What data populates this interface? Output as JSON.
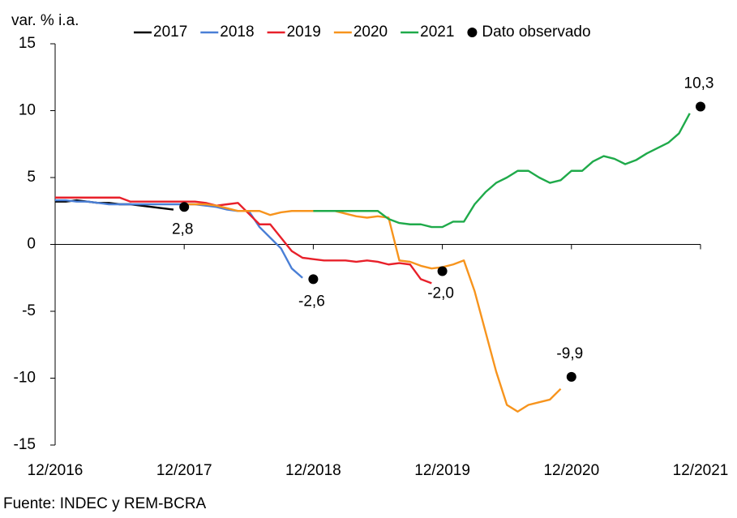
{
  "chart_data": {
    "type": "line",
    "y_label": "var. % i.a.",
    "source": "Fuente: INDEC y REM-BCRA",
    "x": [
      "12/2016",
      null,
      null,
      null,
      null,
      null,
      null,
      null,
      null,
      null,
      null,
      null,
      "12/2017",
      null,
      null,
      null,
      null,
      null,
      null,
      null,
      null,
      null,
      null,
      null,
      "12/2018",
      null,
      null,
      null,
      null,
      null,
      null,
      null,
      null,
      null,
      null,
      null,
      "12/2019",
      null,
      null,
      null,
      null,
      null,
      null,
      null,
      null,
      null,
      null,
      null,
      "12/2020",
      null,
      null,
      null,
      null,
      null,
      null,
      null,
      null,
      null,
      null,
      null,
      "12/2021"
    ],
    "ylim": [
      -15,
      15
    ],
    "yticks": [
      -15,
      -10,
      -5,
      0,
      5,
      10,
      15
    ],
    "series": [
      {
        "name": "2017",
        "color": "#000000",
        "values": [
          3.2,
          3.2,
          3.3,
          3.2,
          3.1,
          3.1,
          3.0,
          3.0,
          2.9,
          2.8,
          2.7,
          2.6,
          null,
          null,
          null,
          null,
          null,
          null,
          null,
          null,
          null,
          null,
          null,
          null,
          null,
          null,
          null,
          null,
          null,
          null,
          null,
          null,
          null,
          null,
          null,
          null,
          null,
          null,
          null,
          null,
          null,
          null,
          null,
          null,
          null,
          null,
          null,
          null,
          null,
          null,
          null,
          null,
          null,
          null,
          null,
          null,
          null,
          null,
          null,
          null,
          null
        ]
      },
      {
        "name": "2018",
        "color": "#4a7fd6",
        "values": [
          3.3,
          3.3,
          3.2,
          3.2,
          3.1,
          3.0,
          3.0,
          3.0,
          3.0,
          3.0,
          3.0,
          3.0,
          3.0,
          3.0,
          2.9,
          2.8,
          2.6,
          2.5,
          2.5,
          1.3,
          0.5,
          -0.3,
          -1.8,
          -2.5,
          null,
          null,
          null,
          null,
          null,
          null,
          null,
          null,
          null,
          null,
          null,
          null,
          null,
          null,
          null,
          null,
          null,
          null,
          null,
          null,
          null,
          null,
          null,
          null,
          null,
          null,
          null,
          null,
          null,
          null,
          null,
          null,
          null,
          null,
          null,
          null,
          null
        ]
      },
      {
        "name": "2019",
        "color": "#e8202a",
        "values": [
          3.5,
          3.5,
          3.5,
          3.5,
          3.5,
          3.5,
          3.5,
          3.2,
          3.2,
          3.2,
          3.2,
          3.2,
          3.2,
          3.2,
          3.1,
          2.9,
          3.0,
          3.1,
          2.3,
          1.5,
          1.5,
          0.5,
          -0.5,
          -1.0,
          -1.1,
          -1.2,
          -1.2,
          -1.2,
          -1.3,
          -1.2,
          -1.3,
          -1.5,
          -1.4,
          -1.5,
          -2.6,
          -2.9,
          null,
          null,
          null,
          null,
          null,
          null,
          null,
          null,
          null,
          null,
          null,
          null,
          null,
          null,
          null,
          null,
          null,
          null,
          null,
          null,
          null,
          null,
          null,
          null,
          null
        ]
      },
      {
        "name": "2020",
        "color": "#f7941d",
        "values": [
          null,
          null,
          null,
          null,
          null,
          null,
          null,
          null,
          null,
          null,
          null,
          null,
          3.0,
          3.0,
          3.0,
          2.9,
          2.7,
          2.5,
          2.5,
          2.5,
          2.2,
          2.4,
          2.5,
          2.5,
          2.5,
          2.5,
          2.5,
          2.3,
          2.1,
          2.0,
          2.1,
          2.0,
          -1.2,
          -1.3,
          -1.6,
          -1.8,
          -1.7,
          -1.5,
          -1.2,
          -3.5,
          -6.5,
          -9.5,
          -12,
          -12.5,
          -12,
          -11.8,
          -11.6,
          -10.8,
          null,
          null,
          null,
          null,
          null,
          null,
          null,
          null,
          null,
          null,
          null,
          null,
          null
        ]
      },
      {
        "name": "2021",
        "color": "#1faa4a",
        "values": [
          null,
          null,
          null,
          null,
          null,
          null,
          null,
          null,
          null,
          null,
          null,
          null,
          null,
          null,
          null,
          null,
          null,
          null,
          null,
          null,
          null,
          null,
          null,
          null,
          2.5,
          2.5,
          2.5,
          2.5,
          2.5,
          2.5,
          2.5,
          1.9,
          1.6,
          1.5,
          1.5,
          1.3,
          1.3,
          1.7,
          1.7,
          3.0,
          3.9,
          4.6,
          5.0,
          5.5,
          5.5,
          5.0,
          4.6,
          4.8,
          5.5,
          5.5,
          6.2,
          6.6,
          6.4,
          6.0,
          6.3,
          6.8,
          7.2,
          7.6,
          8.3,
          9.8,
          null
        ]
      }
    ],
    "observed": {
      "name": "Dato observado",
      "color": "#000000",
      "x": [
        "12/2017",
        "12/2018",
        "12/2019",
        "12/2020",
        "12/2021"
      ],
      "values": [
        2.8,
        -2.6,
        -2.0,
        -9.9,
        10.3
      ],
      "value_labels": [
        "2,8",
        "-2,6",
        "-2,0",
        "-9,9",
        "10,3"
      ]
    }
  }
}
